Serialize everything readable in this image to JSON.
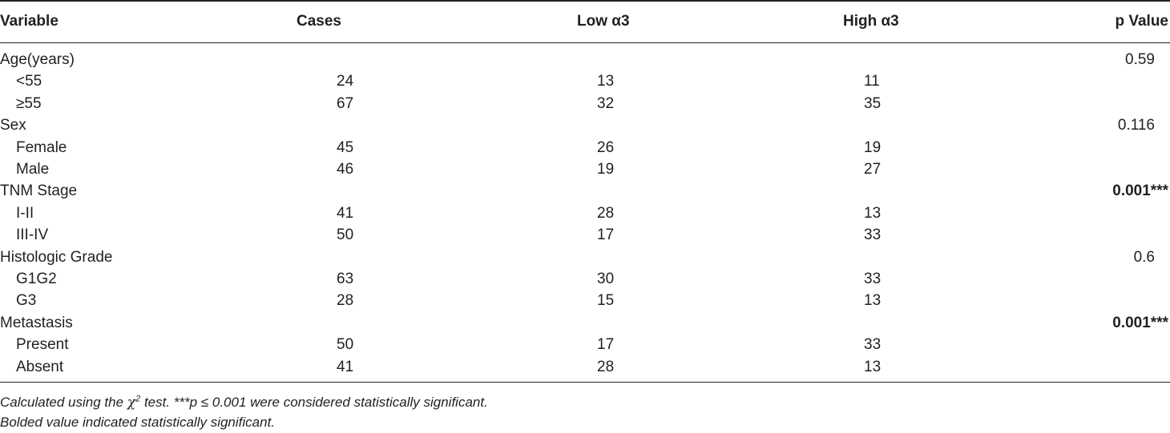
{
  "header": {
    "variable": "Variable",
    "cases": "Cases",
    "low": "Low α3",
    "high": "High α3",
    "p": "p Value"
  },
  "rows": [
    {
      "label": "Age(years)",
      "indent": false,
      "cases": "",
      "low": "",
      "high": "",
      "p": "0.59",
      "bold": false
    },
    {
      "label": "<55",
      "indent": true,
      "cases": "24",
      "low": "13",
      "high": "11",
      "p": "",
      "bold": false
    },
    {
      "label": "≥55",
      "indent": true,
      "cases": "67",
      "low": "32",
      "high": "35",
      "p": "",
      "bold": false
    },
    {
      "label": "Sex",
      "indent": false,
      "cases": "",
      "low": "",
      "high": "",
      "p": "0.116",
      "bold": false
    },
    {
      "label": "Female",
      "indent": true,
      "cases": "45",
      "low": "26",
      "high": "19",
      "p": "",
      "bold": false
    },
    {
      "label": "Male",
      "indent": true,
      "cases": "46",
      "low": "19",
      "high": "27",
      "p": "",
      "bold": false
    },
    {
      "label": "TNM Stage",
      "indent": false,
      "cases": "",
      "low": "",
      "high": "",
      "p": "0.001***",
      "bold": true
    },
    {
      "label": "I-II",
      "indent": true,
      "cases": "41",
      "low": "28",
      "high": "13",
      "p": "",
      "bold": false
    },
    {
      "label": "III-IV",
      "indent": true,
      "cases": "50",
      "low": "17",
      "high": "33",
      "p": "",
      "bold": false
    },
    {
      "label": "Histologic Grade",
      "indent": false,
      "cases": "",
      "low": "",
      "high": "",
      "p": "0.6",
      "bold": false
    },
    {
      "label": "G1G2",
      "indent": true,
      "cases": "63",
      "low": "30",
      "high": "33",
      "p": "",
      "bold": false
    },
    {
      "label": "G3",
      "indent": true,
      "cases": "28",
      "low": "15",
      "high": "13",
      "p": "",
      "bold": false
    },
    {
      "label": "Metastasis",
      "indent": false,
      "cases": "",
      "low": "",
      "high": "",
      "p": "0.001***",
      "bold": true
    },
    {
      "label": "Present",
      "indent": true,
      "cases": "50",
      "low": "17",
      "high": "33",
      "p": "",
      "bold": false
    },
    {
      "label": "Absent",
      "indent": true,
      "cases": "41",
      "low": "28",
      "high": "13",
      "p": "",
      "bold": false
    }
  ],
  "footnotes": {
    "line1_pre": "Calculated using the ",
    "line1_chi": "χ",
    "line1_sup": "2",
    "line1_post": " test. ***p ≤ 0.001 were considered statistically significant.",
    "line2": "Bolded value indicated statistically significant."
  }
}
